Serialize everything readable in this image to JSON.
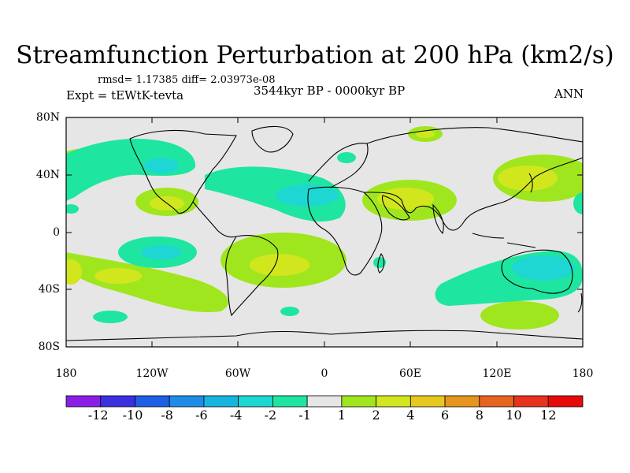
{
  "header": {
    "title": "Streamfunction Perturbation at 200 hPa (km2/s)",
    "stats": "rmsd= 1.17385 diff= 2.03973e-08",
    "experiment": "Expt = tEWtK-tevta",
    "period": "3544kyr BP - 0000kyr BP",
    "season": "ANN"
  },
  "axes": {
    "y_labels": [
      "80N",
      "40N",
      "0",
      "40S",
      "80S"
    ],
    "x_labels": [
      "180",
      "120W",
      "60W",
      "0",
      "60E",
      "120E",
      "180"
    ]
  },
  "colorbar": {
    "labels": [
      "-12",
      "-10",
      "-8",
      "-6",
      "-4",
      "-2",
      "-1",
      "1",
      "2",
      "4",
      "6",
      "8",
      "10",
      "12"
    ],
    "colors": [
      "#8b1ee6",
      "#3b2fe0",
      "#1e5fe6",
      "#1e8ce6",
      "#17b4e0",
      "#1ed7d2",
      "#1ee6a0",
      "#e6e6e6",
      "#a0e61e",
      "#d2e61e",
      "#e6c81e",
      "#e6961e",
      "#e6641e",
      "#e6321e",
      "#e60a0a"
    ]
  },
  "colors": {
    "ocean_background": "#e6e6e6",
    "pos_light": "#a0e61e",
    "pos_mid": "#d2e61e",
    "pos_strong": "#e6c81e",
    "neg_light": "#1ee6a0",
    "neg_mid": "#1ed7d2"
  }
}
